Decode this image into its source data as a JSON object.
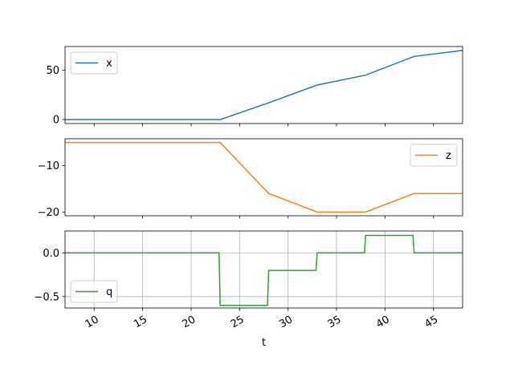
{
  "figure": {
    "xlabel": "t"
  },
  "chart_data": [
    {
      "type": "line",
      "xlim": [
        7.0,
        48.0
      ],
      "ylim": [
        -4.0,
        74.0
      ],
      "y_ticks": [
        {
          "v": 0,
          "label": "0"
        },
        {
          "v": 50,
          "label": "50"
        }
      ],
      "grid": false,
      "legend": "top-left",
      "step": false,
      "series": [
        {
          "name": "x",
          "color": "#1f77b4",
          "points": [
            [
              7,
              0
            ],
            [
              8,
              0
            ],
            [
              13,
              0
            ],
            [
              18,
              0
            ],
            [
              23,
              0
            ],
            [
              28,
              17
            ],
            [
              33,
              35
            ],
            [
              38,
              45
            ],
            [
              43,
              64
            ],
            [
              48,
              70
            ]
          ]
        }
      ]
    },
    {
      "type": "line",
      "xlim": [
        7.0,
        48.0
      ],
      "ylim": [
        -20.8,
        -4.2
      ],
      "y_ticks": [
        {
          "v": -10,
          "label": "−10"
        },
        {
          "v": -20,
          "label": "−20"
        }
      ],
      "grid": false,
      "legend": "top-right",
      "step": false,
      "series": [
        {
          "name": "z",
          "color": "#ff7f0e",
          "points": [
            [
              7,
              -5
            ],
            [
              8,
              -5
            ],
            [
              13,
              -5
            ],
            [
              18,
              -5
            ],
            [
              23,
              -5
            ],
            [
              28,
              -16
            ],
            [
              33,
              -20
            ],
            [
              38,
              -20
            ],
            [
              43,
              -16
            ],
            [
              48,
              -16
            ]
          ]
        }
      ]
    },
    {
      "type": "line",
      "xlim": [
        7.0,
        48.0
      ],
      "ylim": [
        -0.63,
        0.25
      ],
      "y_ticks": [
        {
          "v": 0.0,
          "label": "0.0"
        },
        {
          "v": -0.5,
          "label": "−0.5"
        }
      ],
      "x_ticks": [
        10,
        15,
        20,
        25,
        30,
        35,
        40,
        45
      ],
      "grid": true,
      "legend": "bottom-left",
      "step": true,
      "series": [
        {
          "name": "q",
          "color": "#2ca02c",
          "points": [
            [
              7,
              0
            ],
            [
              8,
              0
            ],
            [
              13,
              0
            ],
            [
              18,
              0
            ],
            [
              23,
              -0.6
            ],
            [
              28,
              -0.2
            ],
            [
              33,
              0
            ],
            [
              38,
              0.2
            ],
            [
              43,
              0
            ],
            [
              48,
              0
            ]
          ]
        }
      ]
    }
  ]
}
